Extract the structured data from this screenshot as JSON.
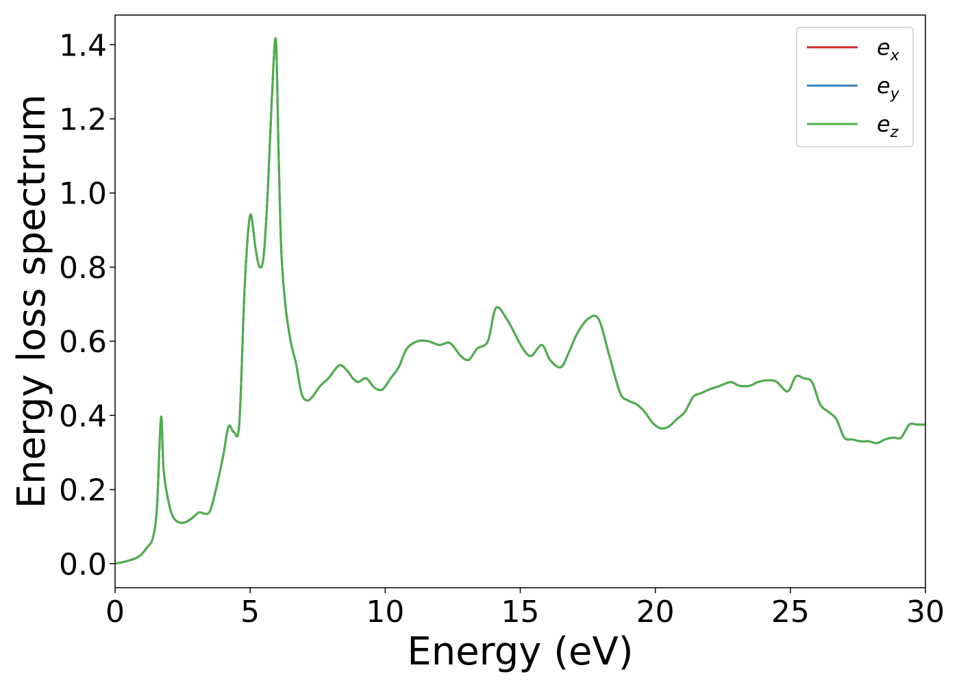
{
  "chart_data": {
    "type": "line",
    "xlabel": "Energy (eV)",
    "ylabel": "Energy loss spectrum",
    "xlim": [
      0,
      30
    ],
    "ylim": [
      -0.065,
      1.48
    ],
    "xticks": [
      0,
      5,
      10,
      15,
      20,
      25,
      30
    ],
    "xtick_labels": [
      "0",
      "5",
      "10",
      "15",
      "20",
      "25",
      "30"
    ],
    "yticks": [
      0.0,
      0.2,
      0.4,
      0.6,
      0.8,
      1.0,
      1.2,
      1.4
    ],
    "ytick_labels": [
      "0.0",
      "0.2",
      "0.4",
      "0.6",
      "0.8",
      "1.0",
      "1.2",
      "1.4"
    ],
    "grid": false,
    "legend_position": "top-right",
    "x": [
      0.0,
      0.5,
      0.9,
      1.2,
      1.4,
      1.55,
      1.7,
      1.8,
      2.0,
      2.2,
      2.5,
      2.8,
      3.1,
      3.3,
      3.5,
      3.7,
      4.0,
      4.2,
      4.4,
      4.6,
      4.8,
      5.0,
      5.2,
      5.35,
      5.5,
      5.65,
      5.8,
      5.95,
      6.05,
      6.15,
      6.3,
      6.5,
      6.7,
      6.9,
      7.1,
      7.3,
      7.6,
      7.9,
      8.3,
      8.6,
      8.8,
      9.0,
      9.3,
      9.6,
      9.9,
      10.2,
      10.5,
      10.8,
      11.2,
      11.6,
      12.0,
      12.4,
      12.8,
      13.1,
      13.4,
      13.8,
      14.1,
      14.5,
      14.8,
      15.1,
      15.4,
      15.8,
      16.1,
      16.5,
      16.8,
      17.1,
      17.5,
      17.9,
      18.3,
      18.7,
      19.0,
      19.3,
      19.6,
      19.9,
      20.2,
      20.5,
      20.8,
      21.1,
      21.4,
      21.7,
      22.0,
      22.4,
      22.8,
      23.1,
      23.5,
      23.8,
      24.2,
      24.5,
      24.9,
      25.2,
      25.5,
      25.8,
      26.1,
      26.4,
      26.7,
      27.0,
      27.3,
      27.6,
      27.9,
      28.2,
      28.5,
      28.8,
      29.1,
      29.4,
      29.7,
      30.0
    ],
    "series": [
      {
        "name": "e_x",
        "label_base": "e",
        "label_sub": "x",
        "color": "#d62728",
        "y": [
          0.0,
          0.008,
          0.02,
          0.045,
          0.07,
          0.15,
          0.395,
          0.25,
          0.16,
          0.12,
          0.11,
          0.12,
          0.138,
          0.135,
          0.14,
          0.19,
          0.29,
          0.37,
          0.355,
          0.38,
          0.75,
          0.94,
          0.85,
          0.8,
          0.83,
          1.0,
          1.25,
          1.415,
          1.12,
          0.85,
          0.7,
          0.6,
          0.54,
          0.46,
          0.44,
          0.45,
          0.48,
          0.5,
          0.535,
          0.52,
          0.5,
          0.49,
          0.5,
          0.475,
          0.47,
          0.5,
          0.53,
          0.58,
          0.6,
          0.6,
          0.59,
          0.595,
          0.56,
          0.55,
          0.58,
          0.6,
          0.69,
          0.66,
          0.62,
          0.58,
          0.56,
          0.59,
          0.55,
          0.53,
          0.57,
          0.62,
          0.66,
          0.66,
          0.56,
          0.46,
          0.44,
          0.43,
          0.41,
          0.38,
          0.365,
          0.37,
          0.39,
          0.41,
          0.45,
          0.46,
          0.47,
          0.48,
          0.49,
          0.48,
          0.48,
          0.49,
          0.495,
          0.49,
          0.465,
          0.505,
          0.5,
          0.49,
          0.43,
          0.41,
          0.39,
          0.34,
          0.335,
          0.33,
          0.33,
          0.325,
          0.335,
          0.34,
          0.34,
          0.375,
          0.375,
          0.375
        ]
      },
      {
        "name": "e_y",
        "label_base": "e",
        "label_sub": "y",
        "color": "#377eb8",
        "y": [
          0.0,
          0.008,
          0.02,
          0.045,
          0.07,
          0.15,
          0.395,
          0.25,
          0.16,
          0.12,
          0.11,
          0.12,
          0.138,
          0.135,
          0.14,
          0.19,
          0.29,
          0.37,
          0.355,
          0.38,
          0.75,
          0.94,
          0.85,
          0.8,
          0.83,
          1.0,
          1.25,
          1.415,
          1.12,
          0.85,
          0.7,
          0.6,
          0.54,
          0.46,
          0.44,
          0.45,
          0.48,
          0.5,
          0.535,
          0.52,
          0.5,
          0.49,
          0.5,
          0.475,
          0.47,
          0.5,
          0.53,
          0.58,
          0.6,
          0.6,
          0.59,
          0.595,
          0.56,
          0.55,
          0.58,
          0.6,
          0.69,
          0.66,
          0.62,
          0.58,
          0.56,
          0.59,
          0.55,
          0.53,
          0.57,
          0.62,
          0.66,
          0.66,
          0.56,
          0.46,
          0.44,
          0.43,
          0.41,
          0.38,
          0.365,
          0.37,
          0.39,
          0.41,
          0.45,
          0.46,
          0.47,
          0.48,
          0.49,
          0.48,
          0.48,
          0.49,
          0.495,
          0.49,
          0.465,
          0.505,
          0.5,
          0.49,
          0.43,
          0.41,
          0.39,
          0.34,
          0.335,
          0.33,
          0.33,
          0.325,
          0.335,
          0.34,
          0.34,
          0.375,
          0.375,
          0.375
        ]
      },
      {
        "name": "e_z",
        "label_base": "e",
        "label_sub": "z",
        "color": "#4daf4a",
        "y": [
          0.0,
          0.008,
          0.02,
          0.045,
          0.07,
          0.15,
          0.395,
          0.25,
          0.16,
          0.12,
          0.11,
          0.12,
          0.138,
          0.135,
          0.14,
          0.19,
          0.29,
          0.37,
          0.355,
          0.38,
          0.75,
          0.94,
          0.85,
          0.8,
          0.83,
          1.0,
          1.25,
          1.415,
          1.12,
          0.85,
          0.7,
          0.6,
          0.54,
          0.46,
          0.44,
          0.45,
          0.48,
          0.5,
          0.535,
          0.52,
          0.5,
          0.49,
          0.5,
          0.475,
          0.47,
          0.5,
          0.53,
          0.58,
          0.6,
          0.6,
          0.59,
          0.595,
          0.56,
          0.55,
          0.58,
          0.6,
          0.69,
          0.66,
          0.62,
          0.58,
          0.56,
          0.59,
          0.55,
          0.53,
          0.57,
          0.62,
          0.66,
          0.66,
          0.56,
          0.46,
          0.44,
          0.43,
          0.41,
          0.38,
          0.365,
          0.37,
          0.39,
          0.41,
          0.45,
          0.46,
          0.47,
          0.48,
          0.49,
          0.48,
          0.48,
          0.49,
          0.495,
          0.49,
          0.465,
          0.505,
          0.5,
          0.49,
          0.43,
          0.41,
          0.39,
          0.34,
          0.335,
          0.33,
          0.33,
          0.325,
          0.335,
          0.34,
          0.34,
          0.375,
          0.375,
          0.375
        ]
      }
    ]
  }
}
